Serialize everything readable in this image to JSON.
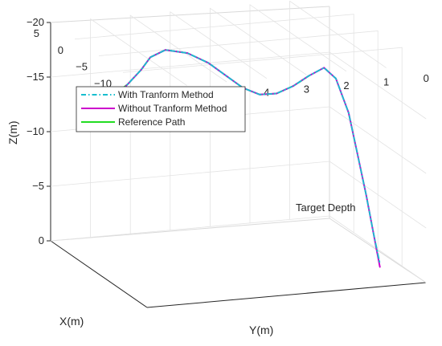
{
  "chart_data": {
    "type": "line",
    "projection": "3d",
    "title": "",
    "xlabel": "X(m)",
    "ylabel": "Y(m)",
    "zlabel": "Z(m)",
    "xlim": [
      -15,
      5
    ],
    "ylim": [
      0,
      7
    ],
    "zlim": [
      -20,
      0
    ],
    "x_ticks": [
      "5",
      "0",
      "−5",
      "−10",
      "−15"
    ],
    "y_ticks": [
      "6",
      "5",
      "4",
      "3",
      "2",
      "1",
      "0"
    ],
    "z_ticks": [
      "0",
      "−5",
      "−10",
      "−15",
      "−20"
    ],
    "grid": true,
    "legend_position": "upper-left",
    "legend": [
      {
        "name": "With Tranform Method",
        "color": "#17becf",
        "style": "dash-dot"
      },
      {
        "name": "Without Tranform Method",
        "color": "#cc00cc",
        "style": "solid"
      },
      {
        "name": "Reference Path",
        "color": "#22dd22",
        "style": "solid"
      }
    ],
    "annotations": [
      "Target Depth"
    ],
    "series": [
      {
        "name": "With Tranform Method",
        "color": "#17becf",
        "points": [
          [
            -5,
            6.6,
            -16
          ],
          [
            -3.6,
            6.1,
            -16.7
          ],
          [
            -2.2,
            5.6,
            -17.4
          ],
          [
            -0.8,
            5.2,
            -18.0
          ],
          [
            0.2,
            4.7,
            -18.2
          ],
          [
            0.6,
            4.1,
            -17.6
          ],
          [
            0.4,
            3.6,
            -16.6
          ],
          [
            -0.2,
            3.2,
            -15.4
          ],
          [
            -1.0,
            2.9,
            -14.5
          ],
          [
            -2.0,
            2.6,
            -14.1
          ],
          [
            -3.0,
            2.3,
            -14.4
          ],
          [
            -4.0,
            2.0,
            -15.3
          ],
          [
            -4.8,
            1.7,
            -16.4
          ],
          [
            -5.4,
            1.4,
            -17.2
          ],
          [
            -6.2,
            1.2,
            -16.4
          ],
          [
            -7.2,
            1.0,
            -13.5
          ],
          [
            -8.2,
            0.9,
            -10.0
          ],
          [
            -9.2,
            0.8,
            -6.5
          ],
          [
            -10.2,
            0.75,
            -3.5
          ],
          [
            -11.2,
            0.7,
            -0.8
          ]
        ]
      },
      {
        "name": "Without Tranform Method",
        "color": "#cc00cc",
        "points": [
          [
            -5,
            6.6,
            -16
          ],
          [
            -3.6,
            6.1,
            -16.7
          ],
          [
            -2.2,
            5.6,
            -17.4
          ],
          [
            -0.8,
            5.2,
            -18.0
          ],
          [
            0.2,
            4.7,
            -18.2
          ],
          [
            0.6,
            4.1,
            -17.6
          ],
          [
            0.4,
            3.6,
            -16.6
          ],
          [
            -0.2,
            3.2,
            -15.4
          ],
          [
            -1.0,
            2.9,
            -14.5
          ],
          [
            -2.0,
            2.6,
            -14.1
          ],
          [
            -3.0,
            2.3,
            -14.4
          ],
          [
            -4.0,
            2.0,
            -15.3
          ],
          [
            -4.8,
            1.7,
            -16.4
          ],
          [
            -5.4,
            1.4,
            -17.2
          ],
          [
            -6.2,
            1.2,
            -16.4
          ],
          [
            -7.2,
            1.0,
            -13.5
          ],
          [
            -8.2,
            0.9,
            -10.0
          ],
          [
            -9.2,
            0.8,
            -6.5
          ],
          [
            -10.2,
            0.75,
            -3.5
          ],
          [
            -11.2,
            0.7,
            -0.5
          ]
        ]
      },
      {
        "name": "Reference Path",
        "color": "#22dd22",
        "points": [
          [
            -4.6,
            6.8,
            -15.6
          ],
          [
            -3.6,
            6.1,
            -16.7
          ],
          [
            -2.2,
            5.6,
            -17.4
          ],
          [
            -0.8,
            5.2,
            -18.0
          ],
          [
            0.2,
            4.7,
            -18.2
          ],
          [
            0.6,
            4.1,
            -17.6
          ],
          [
            0.4,
            3.6,
            -16.6
          ],
          [
            -0.2,
            3.2,
            -15.4
          ],
          [
            -1.0,
            2.9,
            -14.5
          ],
          [
            -2.0,
            2.6,
            -14.1
          ],
          [
            -3.0,
            2.3,
            -14.4
          ],
          [
            -4.0,
            2.0,
            -15.3
          ],
          [
            -4.8,
            1.7,
            -16.4
          ],
          [
            -5.2,
            2.0,
            -16.0
          ]
        ]
      }
    ]
  }
}
